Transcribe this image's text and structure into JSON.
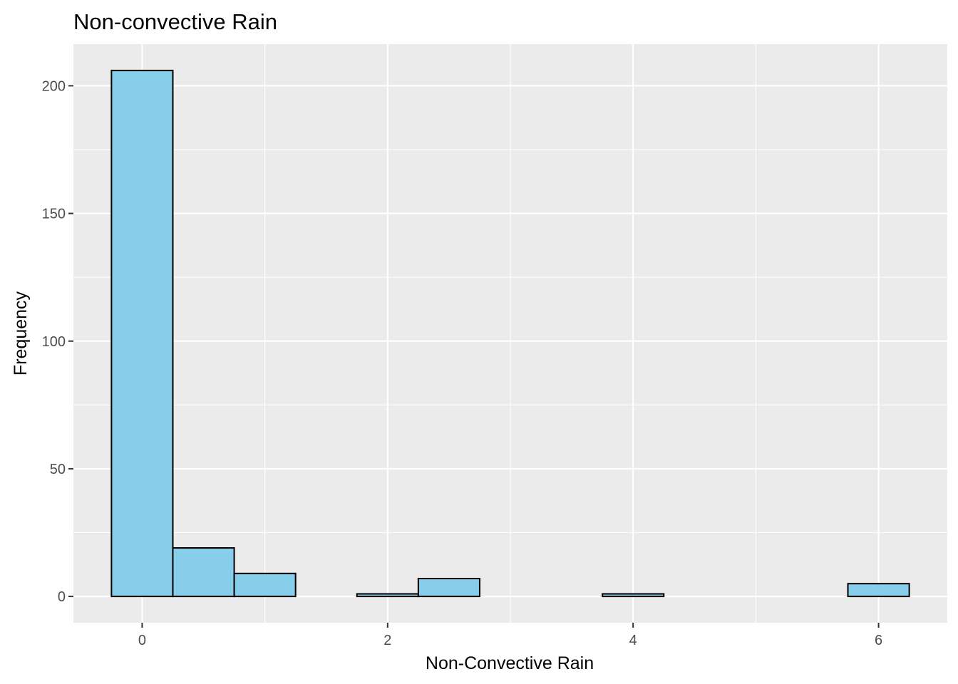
{
  "chart_data": {
    "type": "bar",
    "title": "Non-convective Rain",
    "xlabel": "Non-Convective Rain",
    "ylabel": "Frequency",
    "xlim": [
      -0.56,
      6.56
    ],
    "ylim": [
      -10.3,
      216.3
    ],
    "x_ticks": [
      0,
      2,
      4,
      6
    ],
    "x_tick_labels": [
      "0",
      "2",
      "4",
      "6"
    ],
    "y_ticks": [
      0,
      50,
      100,
      150,
      200
    ],
    "y_tick_labels": [
      "0",
      "50",
      "100",
      "150",
      "200"
    ],
    "bin_width": 0.5,
    "bin_centers": [
      0,
      0.5,
      1.0,
      1.5,
      2.0,
      2.5,
      3.0,
      3.5,
      4.0,
      4.5,
      5.0,
      5.5,
      6.0
    ],
    "values": [
      206,
      19,
      9,
      0,
      1,
      7,
      0,
      0,
      1,
      0,
      0,
      0,
      5
    ],
    "fill_color": "#87CEEB",
    "outline_color": "#000000",
    "panel_color": "#EBEBEB",
    "grid": true,
    "legend": "none"
  }
}
